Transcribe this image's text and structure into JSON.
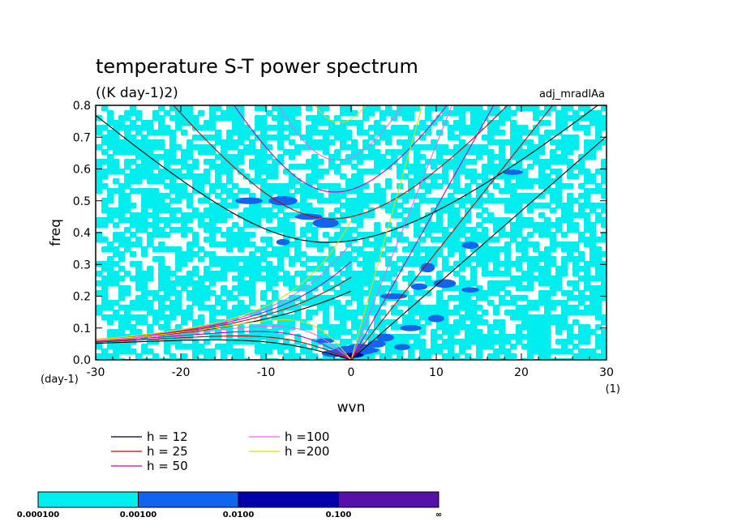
{
  "chart_data": {
    "type": "line",
    "title": "temperature S-T power spectrum",
    "subtitle": "((K day-1)2)",
    "run_label": "adj_mradlAa",
    "xlabel": "wvn",
    "ylabel": "freq",
    "y_unit": "(day-1)",
    "x_unit": "(1)",
    "xlim": [
      -30,
      30
    ],
    "ylim": [
      0,
      0.8
    ],
    "x_ticks": [
      -30,
      -20,
      -10,
      0,
      10,
      20,
      30
    ],
    "y_ticks": [
      0.0,
      0.1,
      0.2,
      0.3,
      0.4,
      0.5,
      0.6,
      0.7,
      0.8
    ],
    "x_tick_labels": [
      "-30",
      "-20",
      "-10",
      "0",
      "10",
      "20",
      "30"
    ],
    "y_tick_labels": [
      "0.0",
      "0.1",
      "0.2",
      "0.3",
      "0.4",
      "0.5",
      "0.6",
      "0.7",
      "0.8"
    ],
    "background": "shaded contours of power spectrum (mostly 0.0001-0.001, scattered 0.001-0.1 patches)",
    "series": [
      {
        "name": "h = 12",
        "color": "#000000",
        "eq_depth": 12
      },
      {
        "name": "h = 25",
        "color": "#cc0000",
        "eq_depth": 25
      },
      {
        "name": "h = 50",
        "color": "#cc00aa",
        "eq_depth": 50
      },
      {
        "name": "h =100",
        "color": "#ee66ee",
        "eq_depth": 100
      },
      {
        "name": "h =200",
        "color": "#dddd00",
        "eq_depth": 200
      }
    ],
    "curve_families": [
      "Kelvin",
      "n=1 inertio-gravity",
      "mixed Rossby-gravity",
      "equatorial Rossby"
    ],
    "color_scale": {
      "labels": [
        "0.000100",
        "0.00100",
        "0.0100",
        "0.100",
        "∞"
      ],
      "colors": [
        "#00eeee",
        "#1164ee",
        "#0000aa",
        "#5511aa"
      ]
    }
  }
}
